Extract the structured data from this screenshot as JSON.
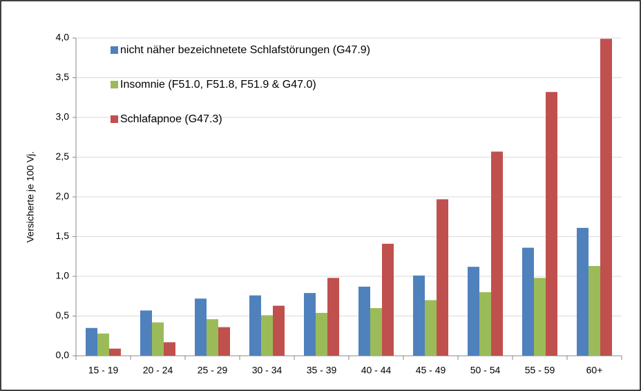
{
  "chart_data": {
    "type": "bar",
    "y_label": "Versicherte je 100 Vj.",
    "categories": [
      "15 - 19",
      "20 - 24",
      "25 - 29",
      "30 - 34",
      "35 - 39",
      "40 - 44",
      "45 - 49",
      "50 - 54",
      "55 - 59",
      "60+"
    ],
    "series": [
      {
        "name": "nicht näher bezeichnetete Schlafstörungen (G47.9)",
        "color": "#4f81bd",
        "values": [
          0.35,
          0.57,
          0.72,
          0.76,
          0.79,
          0.87,
          1.01,
          1.12,
          1.36,
          1.61
        ]
      },
      {
        "name": "Insomnie (F51.0, F51.8, F51.9 & G47.0)",
        "color": "#9bbb59",
        "values": [
          0.28,
          0.42,
          0.46,
          0.51,
          0.54,
          0.6,
          0.7,
          0.8,
          0.98,
          1.13
        ]
      },
      {
        "name": "Schlafapnoe (G47.3)",
        "color": "#c0504d",
        "values": [
          0.09,
          0.17,
          0.36,
          0.63,
          0.98,
          1.41,
          1.97,
          2.57,
          3.32,
          3.99
        ]
      }
    ],
    "ylim": [
      0,
      4
    ],
    "yticks": [
      {
        "value": 0,
        "label": "0,0"
      },
      {
        "value": 0.5,
        "label": "0,5"
      },
      {
        "value": 1,
        "label": "1,0"
      },
      {
        "value": 1.5,
        "label": "1,5"
      },
      {
        "value": 2,
        "label": "2,0"
      },
      {
        "value": 2.5,
        "label": "2,5"
      },
      {
        "value": 3,
        "label": "3,0"
      },
      {
        "value": 3.5,
        "label": "3,5"
      },
      {
        "value": 4,
        "label": "4,0"
      }
    ],
    "grid": true,
    "legend": "top-left"
  }
}
